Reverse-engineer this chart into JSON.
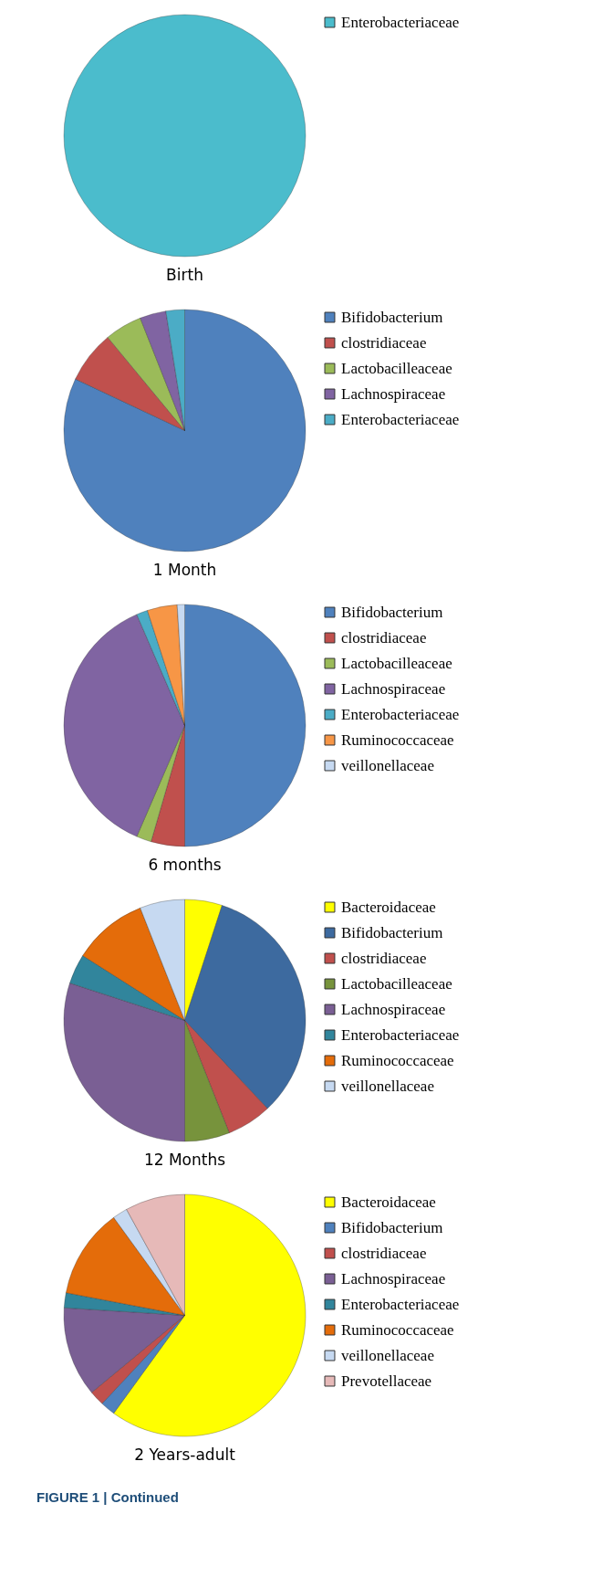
{
  "chart_data": [
    {
      "type": "pie",
      "title": "Birth",
      "legend": "right",
      "categories": [
        "Enterobacteriaceae"
      ],
      "values": [
        100
      ],
      "colors": [
        "#4bbccc"
      ]
    },
    {
      "type": "pie",
      "title": "1 Month",
      "legend": "right",
      "categories": [
        "Bifidobacterium",
        "clostridiaceae",
        "Lactobacilleaceae",
        "Lachnospiraceae",
        "Enterobacteriaceae"
      ],
      "values": [
        82,
        7,
        5,
        3.5,
        2.5
      ],
      "colors": [
        "#4f81bd",
        "#c0504d",
        "#9bbb59",
        "#8064a2",
        "#4bacc6"
      ]
    },
    {
      "type": "pie",
      "title": "6 months",
      "legend": "right",
      "categories": [
        "Bifidobacterium",
        "clostridiaceae",
        "Lactobacilleaceae",
        "Lachnospiraceae",
        "Enterobacteriaceae",
        "Ruminococcaceae",
        "veillonellaceae"
      ],
      "values": [
        50,
        4.5,
        2,
        37,
        1.5,
        4,
        1
      ],
      "colors": [
        "#4f81bd",
        "#c0504d",
        "#9bbb59",
        "#8064a2",
        "#4bacc6",
        "#f79646",
        "#c6d9f1"
      ]
    },
    {
      "type": "pie",
      "title": "12 Months",
      "legend": "right",
      "categories": [
        "Bacteroidaceae",
        "Bifidobacterium",
        "clostridiaceae",
        "Lactobacilleaceae",
        "Lachnospiraceae",
        "Enterobacteriaceae",
        "Ruminococcaceae",
        "veillonellaceae"
      ],
      "values": [
        5,
        33,
        6,
        6,
        30,
        4,
        10,
        6
      ],
      "colors": [
        "#ffff00",
        "#3d6a9f",
        "#c0504d",
        "#77933c",
        "#7a5f94",
        "#31859c",
        "#e46c0a",
        "#c6d9f1"
      ]
    },
    {
      "type": "pie",
      "title": "2 Years-adult",
      "legend": "right",
      "categories": [
        "Bacteroidaceae",
        "Bifidobacterium",
        "clostridiaceae",
        "Lachnospiraceae",
        "Enterobacteriaceae",
        "Ruminococcaceae",
        "veillonellaceae",
        "Prevotellaceae"
      ],
      "values": [
        60,
        2,
        2,
        12,
        2,
        12,
        2,
        8
      ],
      "colors": [
        "#ffff00",
        "#4f81bd",
        "#c0504d",
        "#7a5f94",
        "#31859c",
        "#e46c0a",
        "#c6d9f1",
        "#e6b9b8"
      ],
      "annotations": [
        "FIGURE 1 | Continued"
      ]
    }
  ]
}
